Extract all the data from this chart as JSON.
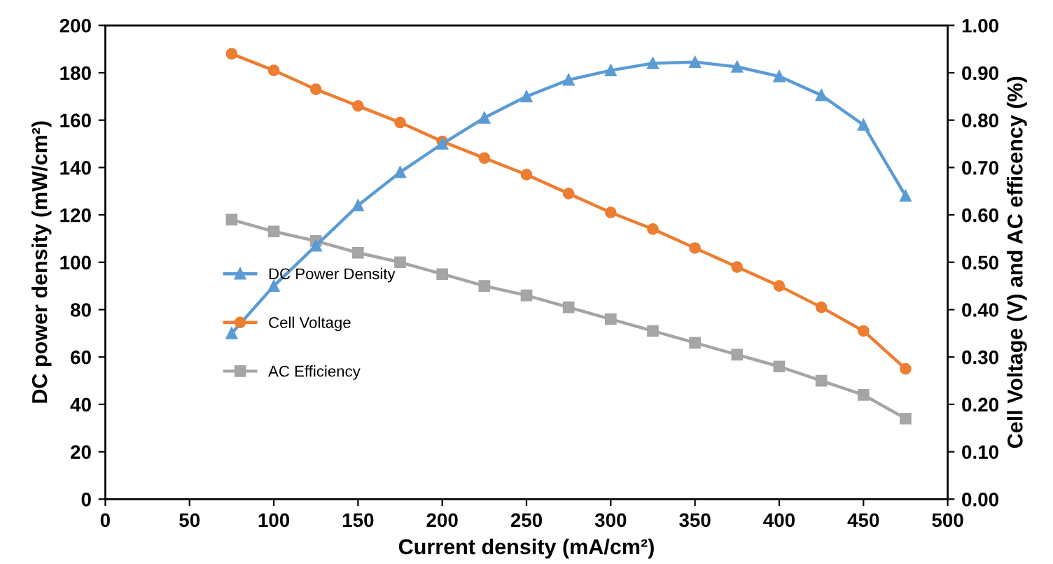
{
  "chart_data": {
    "type": "line",
    "xlabel": "Current density (mA/cm²)",
    "ylabel": "DC power density (mW/cm²)",
    "y2label": "Cell Voltage (V) and AC efficency (%)",
    "x": [
      75,
      100,
      125,
      150,
      175,
      200,
      225,
      250,
      275,
      300,
      325,
      350,
      375,
      400,
      425,
      450,
      475
    ],
    "series": [
      {
        "name": "DC Power Density",
        "color": "#5b9bd5",
        "marker": "triangle",
        "values": [
          70,
          90,
          107,
          124,
          138,
          150,
          161,
          170,
          177,
          181,
          184,
          184.5,
          182.5,
          178.5,
          170.5,
          158,
          128
        ]
      },
      {
        "name": "Cell Voltage",
        "color": "#ed7d31",
        "marker": "circle",
        "axis": "y2",
        "values": [
          0.94,
          0.905,
          0.865,
          0.83,
          0.795,
          0.755,
          0.72,
          0.685,
          0.645,
          0.605,
          0.57,
          0.53,
          0.49,
          0.45,
          0.405,
          0.355,
          0.275
        ]
      },
      {
        "name": "AC Efficiency",
        "color": "#a5a5a5",
        "marker": "square",
        "axis": "y2",
        "values": [
          0.59,
          0.565,
          0.545,
          0.52,
          0.5,
          0.475,
          0.45,
          0.43,
          0.405,
          0.38,
          0.355,
          0.33,
          0.305,
          0.28,
          0.25,
          0.22,
          0.17
        ]
      }
    ],
    "xlim": [
      0,
      500
    ],
    "xticks": [
      0,
      50,
      100,
      150,
      200,
      250,
      300,
      350,
      400,
      450,
      500
    ],
    "ylim": [
      0,
      200
    ],
    "yticks": [
      0,
      20,
      40,
      60,
      80,
      100,
      120,
      140,
      160,
      180,
      200
    ],
    "y2lim": [
      0,
      1
    ],
    "y2ticks": [
      {
        "value": 0,
        "label": "0.00"
      },
      {
        "value": 0.1,
        "label": "0.10"
      },
      {
        "value": 0.2,
        "label": "0.20"
      },
      {
        "value": 0.3,
        "label": "0.30"
      },
      {
        "value": 0.4,
        "label": "0.40"
      },
      {
        "value": 0.5,
        "label": "0.50"
      },
      {
        "value": 0.6,
        "label": "0.60"
      },
      {
        "value": 0.7,
        "label": "0.70"
      },
      {
        "value": 0.8,
        "label": "0.80"
      },
      {
        "value": 0.9,
        "label": "0.90"
      },
      {
        "value": 1,
        "label": "1.00"
      }
    ],
    "grid": false,
    "legend": "left",
    "line_style": "solid"
  }
}
